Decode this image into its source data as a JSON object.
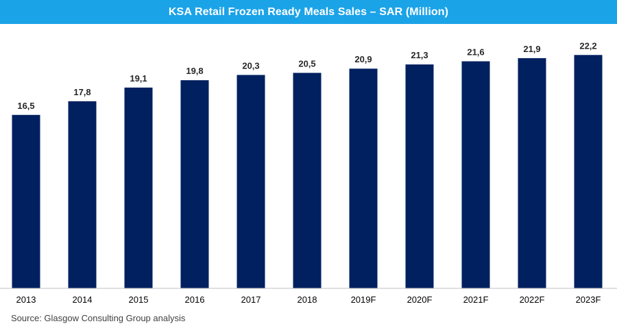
{
  "chart_data": {
    "type": "bar",
    "title": "KSA Retail Frozen Ready Meals Sales – SAR (Million)",
    "categories": [
      "2013",
      "2014",
      "2015",
      "2016",
      "2017",
      "2018",
      "2019F",
      "2020F",
      "2021F",
      "2022F",
      "2023F"
    ],
    "values": [
      16.5,
      17.8,
      19.1,
      19.8,
      20.3,
      20.5,
      20.9,
      21.3,
      21.6,
      21.9,
      22.2
    ],
    "value_labels": [
      "16,5",
      "17,8",
      "19,1",
      "19,8",
      "20,3",
      "20,5",
      "20,9",
      "21,3",
      "21,6",
      "21,9",
      "22,2"
    ],
    "xlabel": "",
    "ylabel": "",
    "ylim": [
      0,
      24.5
    ],
    "grid": false,
    "legend": "none",
    "bar_color": "#002060",
    "title_bar_color": "#1ba3e8",
    "source": "Source: Glasgow Consulting Group analysis"
  }
}
